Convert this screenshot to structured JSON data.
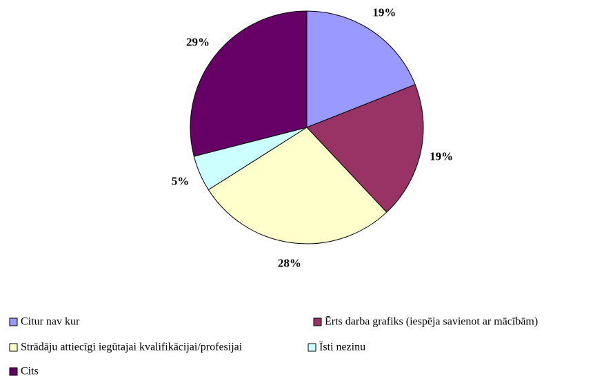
{
  "chart_data": {
    "type": "pie",
    "categories": [
      "Citur nav kur",
      "Ērts darba grafiks (iespēja savienot ar mācībām)",
      "Strādāju attiecīgi iegūtajai kvalifikācijai/profesijai",
      "Īsti nezinu",
      "Cits"
    ],
    "values": [
      19,
      19,
      28,
      5,
      29
    ],
    "value_labels": [
      "19%",
      "19%",
      "28%",
      "5%",
      "29%"
    ],
    "colors": [
      "#9999ff",
      "#993366",
      "#ffffcc",
      "#ccffff",
      "#660066"
    ]
  }
}
